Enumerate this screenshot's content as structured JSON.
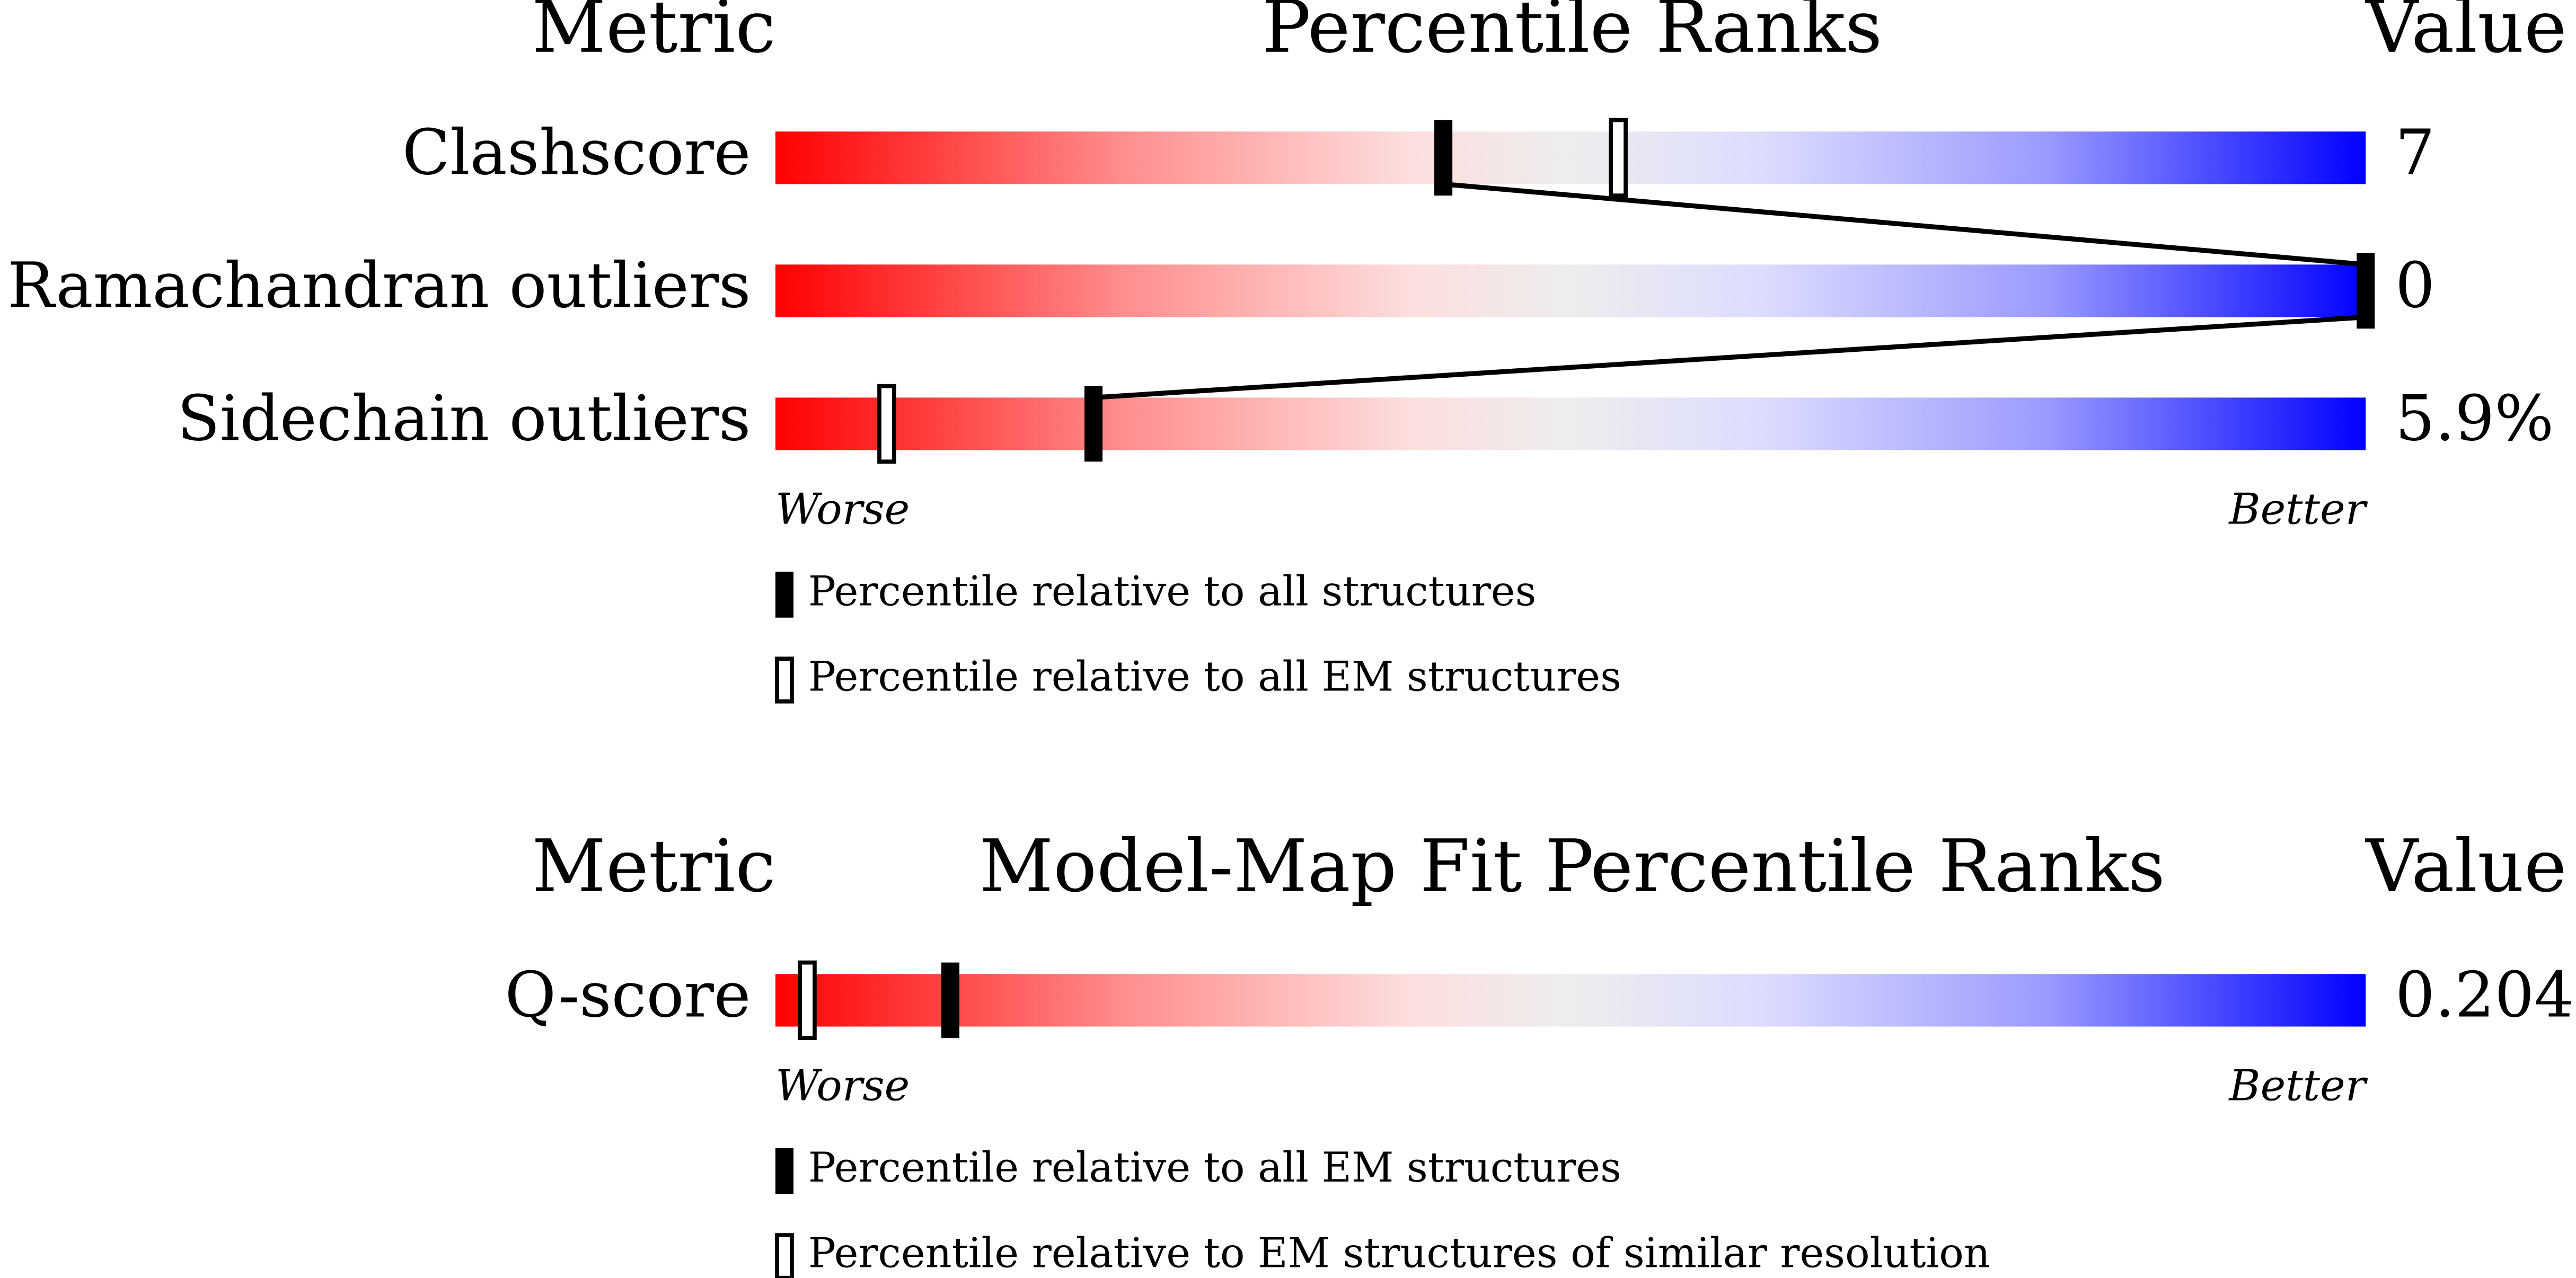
{
  "panels": [
    {
      "headers": {
        "metric": "Metric",
        "ranks": "Percentile Ranks",
        "value": "Value"
      },
      "rows": [
        {
          "metric": "Clashscore",
          "value": "7",
          "percentile_primary": 42,
          "percentile_secondary": 53
        },
        {
          "metric": "Ramachandran outliers",
          "value": "0",
          "percentile_primary": 100
        },
        {
          "metric": "Sidechain outliers",
          "value": "5.9%",
          "percentile_primary": 20,
          "percentile_secondary": 7
        }
      ],
      "worse": "Worse",
      "better": "Better",
      "legend": [
        "Percentile relative to all structures",
        "Percentile relative to all EM structures"
      ]
    },
    {
      "headers": {
        "metric": "Metric",
        "ranks": "Model-Map Fit Percentile Ranks",
        "value": "Value"
      },
      "rows": [
        {
          "metric": "Q-score",
          "value": "0.204",
          "percentile_primary": 11,
          "percentile_secondary": 2
        }
      ],
      "worse": "Worse",
      "better": "Better",
      "legend": [
        "Percentile relative to all EM structures",
        "Percentile relative to EM structures of similar resolution"
      ]
    }
  ]
}
